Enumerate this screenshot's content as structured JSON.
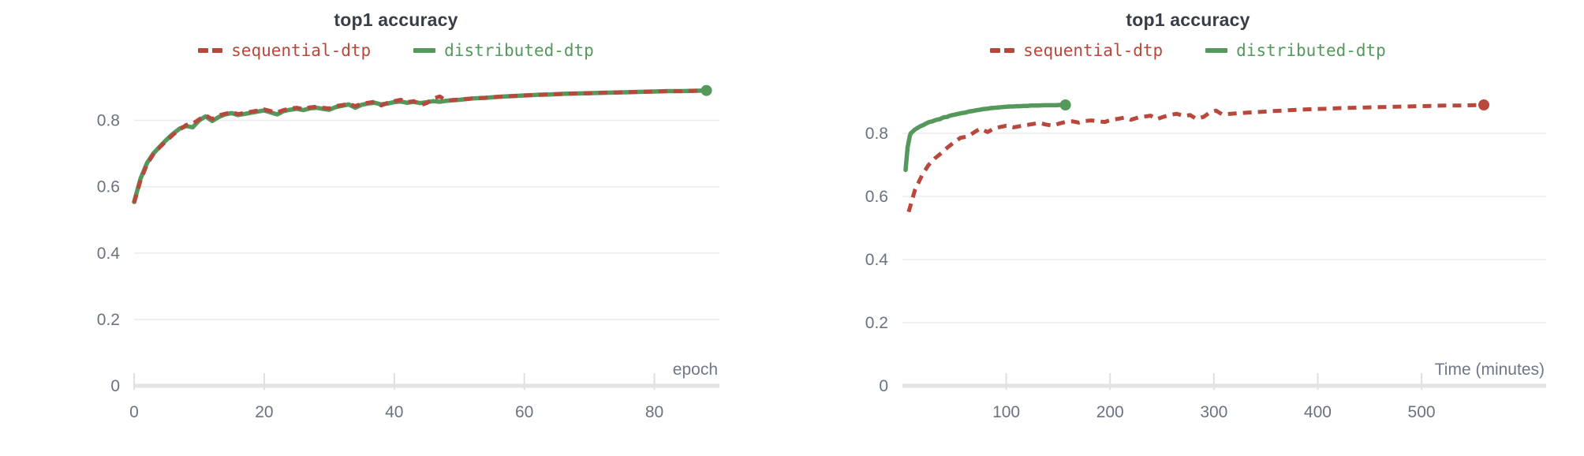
{
  "theme": {
    "background": "#ffffff",
    "title_color": "#373e47",
    "tick_label_color": "#6a7280",
    "axis_label_color": "#6e7787",
    "gridline_color": "#ececee",
    "axis_line_color": "#e3e3e6",
    "tick_mark_color": "#dfdfe3",
    "sequential_color": "#b7483b",
    "distributed_color": "#55985c"
  },
  "chart_data": [
    {
      "type": "line",
      "title": "top1 accuracy",
      "xlabel": "epoch",
      "ylabel": "",
      "xlim": [
        0,
        90
      ],
      "ylim": [
        0,
        0.925
      ],
      "x_ticks": [
        0,
        20,
        40,
        60,
        80
      ],
      "y_ticks": [
        0,
        0.2,
        0.4,
        0.6,
        0.8
      ],
      "y_tick_labels": [
        "0",
        "0.2",
        "0.4",
        "0.6",
        "0.8"
      ],
      "grid": "horizontal",
      "legend_position": "top-center",
      "series": [
        {
          "name": "sequential-dtp",
          "color": "#b7483b",
          "style": "dashed",
          "marker_end": false,
          "points": [
            [
              0,
              0.551
            ],
            [
              1,
              0.62
            ],
            [
              2,
              0.668
            ],
            [
              3,
              0.699
            ],
            [
              4,
              0.72
            ],
            [
              5,
              0.739
            ],
            [
              6,
              0.757
            ],
            [
              7,
              0.772
            ],
            [
              8,
              0.786
            ],
            [
              9,
              0.79
            ],
            [
              10,
              0.803
            ],
            [
              11,
              0.815
            ],
            [
              12,
              0.804
            ],
            [
              13,
              0.815
            ],
            [
              14,
              0.82
            ],
            [
              15,
              0.824
            ],
            [
              16,
              0.819
            ],
            [
              18,
              0.826
            ],
            [
              20,
              0.833
            ],
            [
              21,
              0.828
            ],
            [
              22,
              0.824
            ],
            [
              23,
              0.831
            ],
            [
              24,
              0.836
            ],
            [
              25,
              0.838
            ],
            [
              26,
              0.834
            ],
            [
              27,
              0.839
            ],
            [
              28,
              0.841
            ],
            [
              29,
              0.838
            ],
            [
              30,
              0.836
            ],
            [
              31,
              0.843
            ],
            [
              32,
              0.846
            ],
            [
              33,
              0.85
            ],
            [
              34,
              0.843
            ],
            [
              35,
              0.85
            ],
            [
              36,
              0.853
            ],
            [
              37,
              0.856
            ],
            [
              38,
              0.845
            ],
            [
              39,
              0.853
            ],
            [
              40,
              0.858
            ],
            [
              41,
              0.862
            ],
            [
              42,
              0.855
            ],
            [
              43,
              0.858
            ],
            [
              44,
              0.846
            ],
            [
              45,
              0.852
            ],
            [
              46,
              0.866
            ],
            [
              47,
              0.872
            ],
            [
              48,
              0.86
            ],
            [
              50,
              0.863
            ],
            [
              52,
              0.866
            ],
            [
              54,
              0.868
            ],
            [
              56,
              0.871
            ],
            [
              58,
              0.873
            ],
            [
              60,
              0.875
            ],
            [
              62,
              0.877
            ],
            [
              64,
              0.878
            ],
            [
              66,
              0.88
            ],
            [
              68,
              0.881
            ],
            [
              70,
              0.882
            ],
            [
              72,
              0.883
            ],
            [
              74,
              0.884
            ],
            [
              76,
              0.885
            ],
            [
              78,
              0.886
            ],
            [
              80,
              0.887
            ],
            [
              82,
              0.888
            ],
            [
              84,
              0.888
            ],
            [
              86,
              0.889
            ],
            [
              88,
              0.89
            ]
          ]
        },
        {
          "name": "distributed-dtp",
          "color": "#55985c",
          "style": "solid",
          "marker_end": true,
          "points": [
            [
              0,
              0.554
            ],
            [
              1,
              0.625
            ],
            [
              2,
              0.672
            ],
            [
              3,
              0.701
            ],
            [
              4,
              0.722
            ],
            [
              5,
              0.742
            ],
            [
              6,
              0.76
            ],
            [
              7,
              0.775
            ],
            [
              8,
              0.783
            ],
            [
              9,
              0.779
            ],
            [
              10,
              0.8
            ],
            [
              11,
              0.812
            ],
            [
              12,
              0.798
            ],
            [
              13,
              0.81
            ],
            [
              14,
              0.818
            ],
            [
              15,
              0.822
            ],
            [
              16,
              0.816
            ],
            [
              18,
              0.823
            ],
            [
              20,
              0.83
            ],
            [
              21,
              0.824
            ],
            [
              22,
              0.818
            ],
            [
              23,
              0.828
            ],
            [
              24,
              0.832
            ],
            [
              25,
              0.835
            ],
            [
              26,
              0.831
            ],
            [
              27,
              0.836
            ],
            [
              28,
              0.838
            ],
            [
              29,
              0.835
            ],
            [
              30,
              0.832
            ],
            [
              31,
              0.84
            ],
            [
              32,
              0.844
            ],
            [
              33,
              0.848
            ],
            [
              34,
              0.838
            ],
            [
              35,
              0.847
            ],
            [
              36,
              0.851
            ],
            [
              37,
              0.853
            ],
            [
              38,
              0.848
            ],
            [
              39,
              0.851
            ],
            [
              40,
              0.855
            ],
            [
              41,
              0.857
            ],
            [
              42,
              0.853
            ],
            [
              43,
              0.856
            ],
            [
              44,
              0.852
            ],
            [
              45,
              0.855
            ],
            [
              46,
              0.858
            ],
            [
              47,
              0.856
            ],
            [
              48,
              0.859
            ],
            [
              50,
              0.862
            ],
            [
              52,
              0.866
            ],
            [
              54,
              0.868
            ],
            [
              56,
              0.871
            ],
            [
              58,
              0.873
            ],
            [
              60,
              0.875
            ],
            [
              62,
              0.877
            ],
            [
              64,
              0.878
            ],
            [
              66,
              0.88
            ],
            [
              68,
              0.881
            ],
            [
              70,
              0.882
            ],
            [
              72,
              0.883
            ],
            [
              74,
              0.884
            ],
            [
              76,
              0.885
            ],
            [
              78,
              0.886
            ],
            [
              80,
              0.887
            ],
            [
              82,
              0.888
            ],
            [
              84,
              0.888
            ],
            [
              86,
              0.889
            ],
            [
              88,
              0.89
            ]
          ]
        }
      ]
    },
    {
      "type": "line",
      "title": "top1 accuracy",
      "xlabel": "Time (minutes)",
      "ylabel": "",
      "xlim": [
        0,
        620
      ],
      "ylim": [
        0,
        0.975
      ],
      "x_ticks": [
        100,
        200,
        300,
        400,
        500
      ],
      "y_ticks": [
        0,
        0.2,
        0.4,
        0.6,
        0.8
      ],
      "y_tick_labels": [
        "0",
        "0.2",
        "0.4",
        "0.6",
        "0.8"
      ],
      "grid": "horizontal",
      "legend_position": "top-center",
      "series": [
        {
          "name": "sequential-dtp",
          "color": "#b7483b",
          "style": "dashed",
          "marker_end": true,
          "points": [
            [
              6,
              0.551
            ],
            [
              12,
              0.62
            ],
            [
              19,
              0.668
            ],
            [
              25,
              0.699
            ],
            [
              31,
              0.72
            ],
            [
              38,
              0.739
            ],
            [
              44,
              0.757
            ],
            [
              50,
              0.772
            ],
            [
              56,
              0.786
            ],
            [
              63,
              0.79
            ],
            [
              69,
              0.803
            ],
            [
              75,
              0.815
            ],
            [
              82,
              0.804
            ],
            [
              88,
              0.815
            ],
            [
              94,
              0.82
            ],
            [
              100,
              0.824
            ],
            [
              107,
              0.819
            ],
            [
              119,
              0.826
            ],
            [
              132,
              0.833
            ],
            [
              138,
              0.828
            ],
            [
              145,
              0.824
            ],
            [
              151,
              0.831
            ],
            [
              157,
              0.836
            ],
            [
              164,
              0.838
            ],
            [
              170,
              0.834
            ],
            [
              176,
              0.839
            ],
            [
              182,
              0.841
            ],
            [
              189,
              0.838
            ],
            [
              195,
              0.836
            ],
            [
              201,
              0.843
            ],
            [
              208,
              0.846
            ],
            [
              214,
              0.85
            ],
            [
              220,
              0.843
            ],
            [
              227,
              0.85
            ],
            [
              233,
              0.853
            ],
            [
              239,
              0.856
            ],
            [
              245,
              0.845
            ],
            [
              252,
              0.853
            ],
            [
              258,
              0.858
            ],
            [
              264,
              0.862
            ],
            [
              271,
              0.855
            ],
            [
              277,
              0.858
            ],
            [
              283,
              0.846
            ],
            [
              290,
              0.852
            ],
            [
              296,
              0.866
            ],
            [
              302,
              0.872
            ],
            [
              308,
              0.86
            ],
            [
              321,
              0.863
            ],
            [
              334,
              0.866
            ],
            [
              346,
              0.868
            ],
            [
              359,
              0.871
            ],
            [
              371,
              0.873
            ],
            [
              384,
              0.875
            ],
            [
              397,
              0.877
            ],
            [
              409,
              0.878
            ],
            [
              422,
              0.88
            ],
            [
              434,
              0.881
            ],
            [
              447,
              0.882
            ],
            [
              460,
              0.883
            ],
            [
              472,
              0.884
            ],
            [
              485,
              0.885
            ],
            [
              497,
              0.886
            ],
            [
              510,
              0.887
            ],
            [
              523,
              0.888
            ],
            [
              535,
              0.888
            ],
            [
              548,
              0.889
            ],
            [
              560,
              0.89
            ]
          ]
        },
        {
          "name": "distributed-dtp",
          "color": "#55985c",
          "style": "solid",
          "marker_end": true,
          "points": [
            [
              3,
              0.684
            ],
            [
              5,
              0.756
            ],
            [
              7,
              0.79
            ],
            [
              8,
              0.8
            ],
            [
              10,
              0.806
            ],
            [
              12,
              0.812
            ],
            [
              15,
              0.818
            ],
            [
              17,
              0.822
            ],
            [
              20,
              0.826
            ],
            [
              22,
              0.83
            ],
            [
              24,
              0.833
            ],
            [
              26,
              0.836
            ],
            [
              29,
              0.838
            ],
            [
              31,
              0.841
            ],
            [
              33,
              0.843
            ],
            [
              36,
              0.845
            ],
            [
              38,
              0.848
            ],
            [
              40,
              0.851
            ],
            [
              43,
              0.852
            ],
            [
              45,
              0.855
            ],
            [
              47,
              0.857
            ],
            [
              50,
              0.859
            ],
            [
              54,
              0.862
            ],
            [
              57,
              0.864
            ],
            [
              61,
              0.866
            ],
            [
              64,
              0.869
            ],
            [
              68,
              0.871
            ],
            [
              71,
              0.873
            ],
            [
              75,
              0.875
            ],
            [
              78,
              0.877
            ],
            [
              82,
              0.878
            ],
            [
              85,
              0.88
            ],
            [
              89,
              0.881
            ],
            [
              92,
              0.882
            ],
            [
              96,
              0.883
            ],
            [
              99,
              0.884
            ],
            [
              103,
              0.885
            ],
            [
              106,
              0.885
            ],
            [
              110,
              0.886
            ],
            [
              113,
              0.886
            ],
            [
              117,
              0.887
            ],
            [
              120,
              0.887
            ],
            [
              124,
              0.888
            ],
            [
              127,
              0.888
            ],
            [
              131,
              0.888
            ],
            [
              136,
              0.889
            ],
            [
              141,
              0.889
            ],
            [
              147,
              0.889
            ],
            [
              152,
              0.89
            ],
            [
              157,
              0.89
            ]
          ]
        }
      ]
    }
  ]
}
